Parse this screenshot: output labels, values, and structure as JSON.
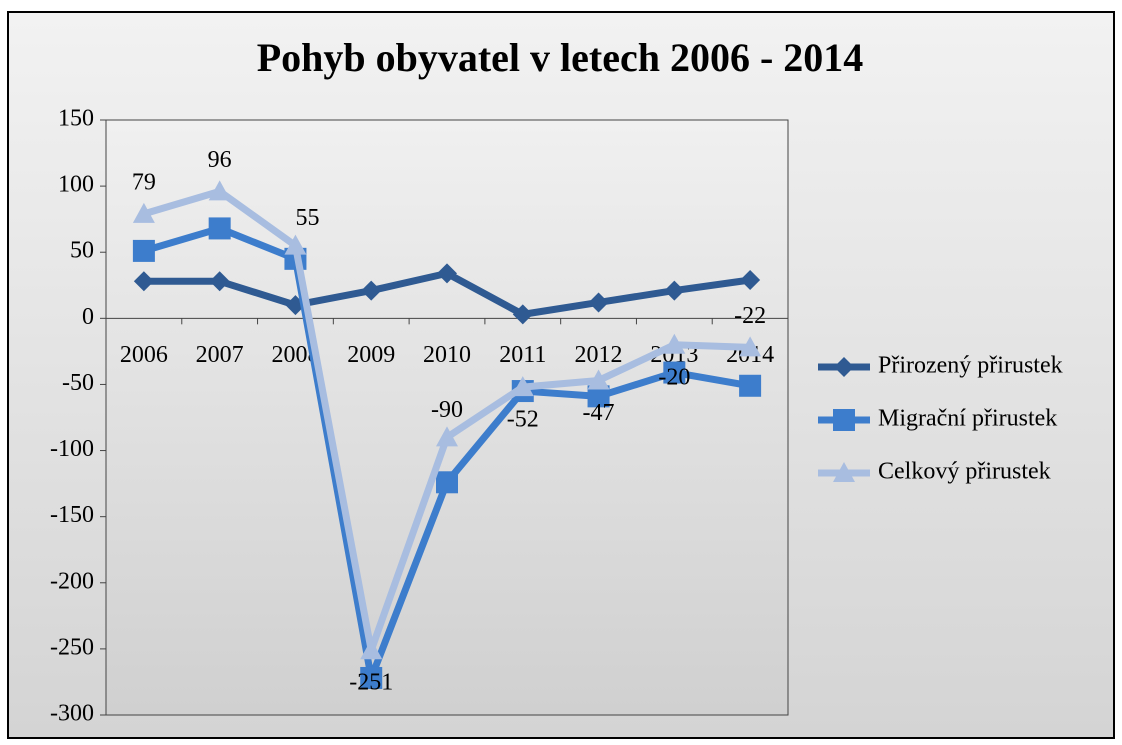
{
  "chart_data": {
    "type": "line",
    "title": "Pohyb obyvatel v letech 2006 - 2014",
    "categories": [
      "2006",
      "2007",
      "2008",
      "2009",
      "2010",
      "2011",
      "2012",
      "2013",
      "2014"
    ],
    "series": [
      {
        "name": "Přirozený přirustek",
        "color": "#2f5a92",
        "marker": "diamond",
        "values": [
          28,
          28,
          10,
          21,
          34,
          3,
          12,
          21,
          29
        ]
      },
      {
        "name": "Migrační přirustek",
        "color": "#3d7dcc",
        "marker": "square",
        "values": [
          51,
          68,
          45,
          -272,
          -124,
          -55,
          -59,
          -41,
          -51
        ]
      },
      {
        "name": "Celkový přirustek",
        "color": "#a8bde0",
        "marker": "triangle",
        "values": [
          79,
          96,
          55,
          -251,
          -90,
          -52,
          -47,
          -20,
          -22
        ],
        "value_labels": [
          "79",
          "96",
          "55",
          "-251",
          "-90",
          "-52",
          "-47",
          "-20",
          "-22"
        ]
      }
    ],
    "ylim": [
      -300,
      150
    ],
    "yticks": [
      -300,
      -250,
      -200,
      -150,
      -100,
      -50,
      0,
      50,
      100,
      150
    ],
    "legend": "right"
  }
}
